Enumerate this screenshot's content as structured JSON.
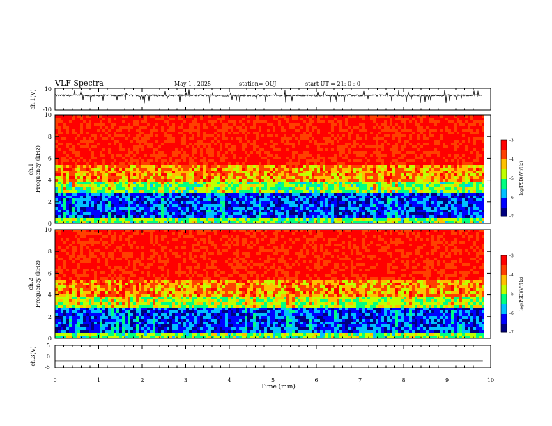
{
  "header": {
    "title": "VLF Spectra",
    "date": "May 1 , 2025",
    "station": "station= OUJ",
    "start": "start UT =   21: 0  : 0"
  },
  "chart_data": {
    "type": "heatmap",
    "xlabel": "Time (min)",
    "xlim": [
      0,
      10
    ],
    "xticks": [
      "0",
      "1",
      "2",
      "3",
      "4",
      "5",
      "6",
      "7",
      "8",
      "9",
      "10"
    ],
    "panels": [
      {
        "kind": "line",
        "ylabel": "ch.1(V)",
        "ylim": [
          -10,
          10
        ],
        "yticks": [
          "10",
          "-10"
        ],
        "series_description_level": 3.5
      },
      {
        "kind": "spectrogram",
        "ylabel_top": "ch.1",
        "ylabel": "Frequency (kHz)",
        "ylim": [
          0,
          10
        ],
        "yticks": [
          "0",
          "2",
          "4",
          "6",
          "8",
          "10"
        ],
        "colorbar_label": "log(PSD)(V²/Hz)",
        "colorbar_ticks": [
          "-3",
          "-4",
          "-5",
          "-6",
          "-7"
        ],
        "colorbar_range": [
          -7,
          -3
        ]
      },
      {
        "kind": "spectrogram",
        "ylabel_top": "ch.2",
        "ylabel": "Frequency (kHz)",
        "ylim": [
          0,
          10
        ],
        "yticks": [
          "0",
          "2",
          "4",
          "6",
          "8",
          "10"
        ],
        "colorbar_label": "log(PSD)(V²/Hz)",
        "colorbar_ticks": [
          "-3",
          "-4",
          "-5",
          "-6",
          "-7"
        ],
        "colorbar_range": [
          -7,
          -3
        ]
      },
      {
        "kind": "line",
        "ylabel": "ch.3(V)",
        "ylim": [
          -5,
          5
        ],
        "yticks": [
          "5",
          "0",
          "-5"
        ],
        "constant_value": -2
      }
    ],
    "colormap": [
      "#000080",
      "#0000ff",
      "#00c0ff",
      "#00ff80",
      "#c0ff00",
      "#ffc000",
      "#ff4000",
      "#ff0000"
    ],
    "xmax_data": 9.82
  }
}
